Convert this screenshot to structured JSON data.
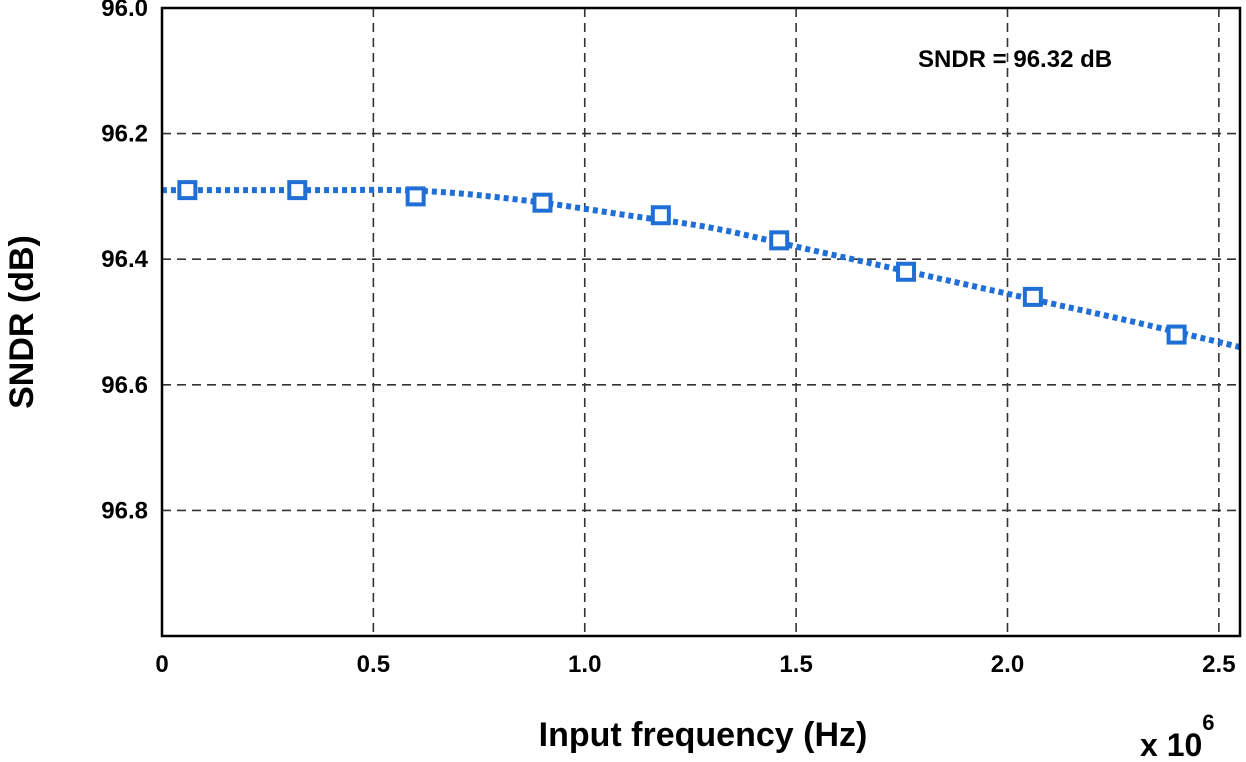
{
  "chart_data": {
    "type": "line",
    "xlabel": "Input frequency (Hz)",
    "x_multiplier": "x 10",
    "x_multiplier_exp": "6",
    "ylabel": "SNDR (dB)",
    "xlim": [
      0,
      2.55
    ],
    "ylim": [
      96.0,
      97.0
    ],
    "y_inverted": true,
    "grid": true,
    "x_ticks": [
      0,
      0.5,
      1.0,
      1.5,
      2.0,
      2.5
    ],
    "x_tick_labels": [
      "0",
      "0.5",
      "1.0",
      "1.5",
      "2.0",
      "2.5"
    ],
    "y_ticks": [
      96.0,
      96.2,
      96.4,
      96.6,
      96.8
    ],
    "y_tick_labels": [
      "96.0",
      "96.2",
      "96.4",
      "96.6",
      "96.8"
    ],
    "annotation": "SNDR = 96.32 dB",
    "series": [
      {
        "color": "#1f6fd6",
        "marker": "square",
        "line_style": "dotted",
        "x": [
          0.06,
          0.32,
          0.6,
          0.9,
          1.18,
          1.46,
          1.76,
          2.06,
          2.4
        ],
        "y": [
          96.29,
          96.29,
          96.3,
          96.31,
          96.33,
          96.37,
          96.42,
          96.46,
          96.52
        ]
      }
    ],
    "fit_curve": {
      "color": "#1f6fd6",
      "x": [
        0,
        0.2,
        0.4,
        0.55,
        0.7,
        0.9,
        1.1,
        1.3,
        1.5,
        1.7,
        1.9,
        2.1,
        2.3,
        2.55
      ],
      "y": [
        96.29,
        96.29,
        96.29,
        96.29,
        96.295,
        96.31,
        96.33,
        96.35,
        96.38,
        96.41,
        96.44,
        96.47,
        96.5,
        96.54
      ]
    }
  }
}
